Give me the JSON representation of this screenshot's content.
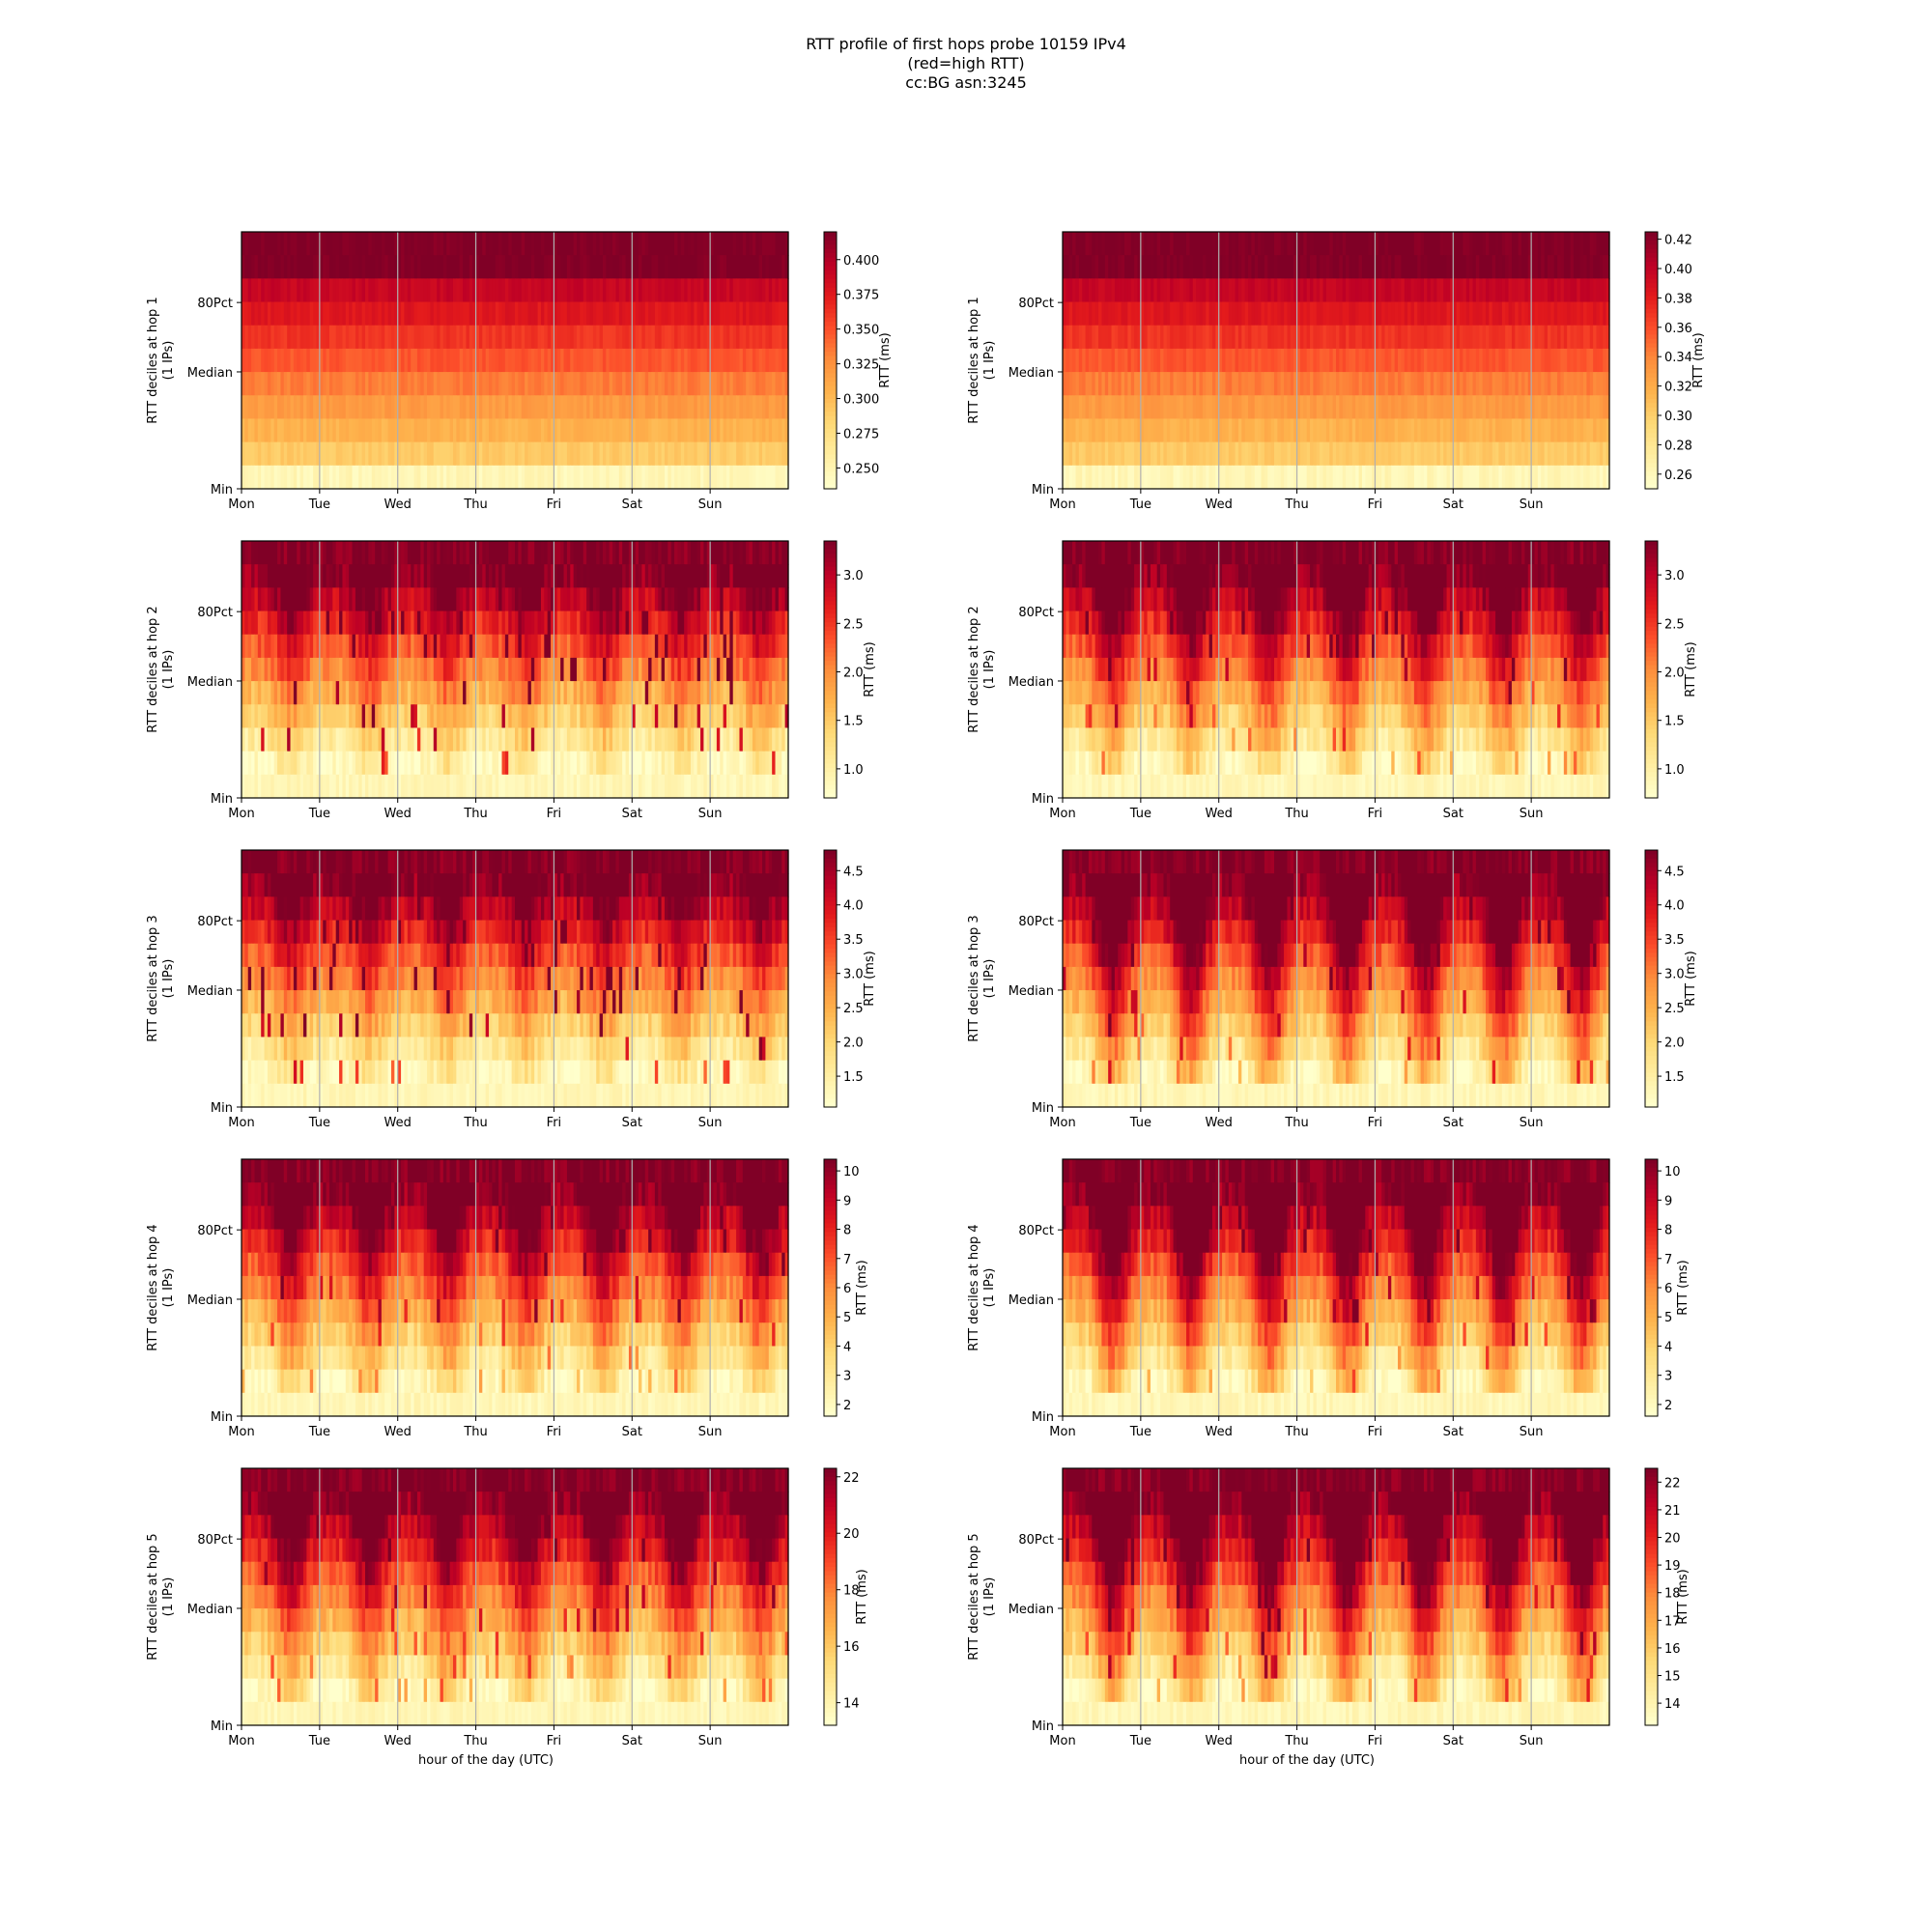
{
  "title_lines": [
    "RTT profile of first hops probe 10159 IPv4",
    "(red=high RTT)",
    "cc:BG asn:3245"
  ],
  "colors": {
    "colormap": [
      "#ffffcc",
      "#ffeda0",
      "#fed976",
      "#feb24c",
      "#fd8d3c",
      "#fc4e2a",
      "#e31a1c",
      "#bd0026",
      "#800026"
    ],
    "gridline": "#b0b0b0",
    "axis": "#000000"
  },
  "chart_data": [
    {
      "type": "heatmap",
      "panel": "hop1-left",
      "ylabel": [
        "RTT deciles at hop 1",
        "(1 IPs)"
      ],
      "xlabel": "",
      "x_ticks": [
        "Mon",
        "Tue",
        "Wed",
        "Thu",
        "Fri",
        "Sat",
        "Sun"
      ],
      "y_ticks": [
        "80Pct",
        "Median",
        "Min"
      ],
      "colorbar_label": "RTT (ms)",
      "colorbar_ticks": [
        "0.250",
        "0.275",
        "0.300",
        "0.325",
        "0.350",
        "0.375",
        "0.400"
      ],
      "colorbar_range": [
        0.235,
        0.42
      ],
      "pattern": "uniform",
      "noise": 0.12,
      "lowest_bin": 0.25
    },
    {
      "type": "heatmap",
      "panel": "hop1-right",
      "ylabel": [
        "RTT deciles at hop 1",
        "(1 IPs)"
      ],
      "xlabel": "",
      "x_ticks": [
        "Mon",
        "Tue",
        "Wed",
        "Thu",
        "Fri",
        "Sat",
        "Sun"
      ],
      "y_ticks": [
        "80Pct",
        "Median",
        "Min"
      ],
      "colorbar_label": "RTT (ms)",
      "colorbar_ticks": [
        "0.26",
        "0.28",
        "0.30",
        "0.32",
        "0.34",
        "0.36",
        "0.38",
        "0.40",
        "0.42"
      ],
      "colorbar_range": [
        0.25,
        0.425
      ],
      "pattern": "uniform",
      "noise": 0.12,
      "lowest_bin": 0.26
    },
    {
      "type": "heatmap",
      "panel": "hop2-left",
      "ylabel": [
        "RTT deciles at hop 2",
        "(1 IPs)"
      ],
      "xlabel": "",
      "x_ticks": [
        "Mon",
        "Tue",
        "Wed",
        "Thu",
        "Fri",
        "Sat",
        "Sun"
      ],
      "y_ticks": [
        "80Pct",
        "Median",
        "Min"
      ],
      "colorbar_label": "RTT (ms)",
      "colorbar_ticks": [
        "1.0",
        "1.5",
        "2.0",
        "2.5",
        "3.0"
      ],
      "colorbar_range": [
        0.7,
        3.35
      ],
      "pattern": "spiky",
      "noise": 0.25,
      "lowest_bin": 0.8
    },
    {
      "type": "heatmap",
      "panel": "hop2-right",
      "ylabel": [
        "RTT deciles at hop 2",
        "(1 IPs)"
      ],
      "xlabel": "",
      "x_ticks": [
        "Mon",
        "Tue",
        "Wed",
        "Thu",
        "Fri",
        "Sat",
        "Sun"
      ],
      "y_ticks": [
        "80Pct",
        "Median",
        "Min"
      ],
      "colorbar_label": "RTT (ms)",
      "colorbar_ticks": [
        "1.0",
        "1.5",
        "2.0",
        "2.5",
        "3.0"
      ],
      "colorbar_range": [
        0.7,
        3.35
      ],
      "pattern": "diurnal-mild",
      "noise": 0.25,
      "lowest_bin": 0.8
    },
    {
      "type": "heatmap",
      "panel": "hop3-left",
      "ylabel": [
        "RTT deciles at hop 3",
        "(1 IPs)"
      ],
      "xlabel": "",
      "x_ticks": [
        "Mon",
        "Tue",
        "Wed",
        "Thu",
        "Fri",
        "Sat",
        "Sun"
      ],
      "y_ticks": [
        "80Pct",
        "Median",
        "Min"
      ],
      "colorbar_label": "RTT (ms)",
      "colorbar_ticks": [
        "1.5",
        "2.0",
        "2.5",
        "3.0",
        "3.5",
        "4.0",
        "4.5"
      ],
      "colorbar_range": [
        1.05,
        4.8
      ],
      "pattern": "spiky",
      "noise": 0.25,
      "lowest_bin": 1.1
    },
    {
      "type": "heatmap",
      "panel": "hop3-right",
      "ylabel": [
        "RTT deciles at hop 3",
        "(1 IPs)"
      ],
      "xlabel": "",
      "x_ticks": [
        "Mon",
        "Tue",
        "Wed",
        "Thu",
        "Fri",
        "Sat",
        "Sun"
      ],
      "y_ticks": [
        "80Pct",
        "Median",
        "Min"
      ],
      "colorbar_label": "RTT (ms)",
      "colorbar_ticks": [
        "1.5",
        "2.0",
        "2.5",
        "3.0",
        "3.5",
        "4.0",
        "4.5"
      ],
      "colorbar_range": [
        1.05,
        4.8
      ],
      "pattern": "diurnal",
      "noise": 0.2,
      "lowest_bin": 1.1
    },
    {
      "type": "heatmap",
      "panel": "hop4-left",
      "ylabel": [
        "RTT deciles at hop 4",
        "(1 IPs)"
      ],
      "xlabel": "",
      "x_ticks": [
        "Mon",
        "Tue",
        "Wed",
        "Thu",
        "Fri",
        "Sat",
        "Sun"
      ],
      "y_ticks": [
        "80Pct",
        "Median",
        "Min"
      ],
      "colorbar_label": "RTT (ms)",
      "colorbar_ticks": [
        "2",
        "3",
        "4",
        "5",
        "6",
        "7",
        "8",
        "9",
        "10"
      ],
      "colorbar_range": [
        1.6,
        10.4
      ],
      "pattern": "diurnal-mild",
      "noise": 0.2,
      "lowest_bin": 1.8
    },
    {
      "type": "heatmap",
      "panel": "hop4-right",
      "ylabel": [
        "RTT deciles at hop 4",
        "(1 IPs)"
      ],
      "xlabel": "",
      "x_ticks": [
        "Mon",
        "Tue",
        "Wed",
        "Thu",
        "Fri",
        "Sat",
        "Sun"
      ],
      "y_ticks": [
        "80Pct",
        "Median",
        "Min"
      ],
      "colorbar_label": "RTT (ms)",
      "colorbar_ticks": [
        "2",
        "3",
        "4",
        "5",
        "6",
        "7",
        "8",
        "9",
        "10"
      ],
      "colorbar_range": [
        1.6,
        10.4
      ],
      "pattern": "diurnal",
      "noise": 0.18,
      "lowest_bin": 1.8
    },
    {
      "type": "heatmap",
      "panel": "hop5-left",
      "ylabel": [
        "RTT deciles at hop 5",
        "(1 IPs)"
      ],
      "xlabel": "hour of the day (UTC)",
      "x_ticks": [
        "Mon",
        "Tue",
        "Wed",
        "Thu",
        "Fri",
        "Sat",
        "Sun"
      ],
      "y_ticks": [
        "80Pct",
        "Median",
        "Min"
      ],
      "colorbar_label": "RTT (ms)",
      "colorbar_ticks": [
        "14",
        "16",
        "18",
        "20",
        "22"
      ],
      "colorbar_range": [
        13.2,
        22.3
      ],
      "pattern": "diurnal-mild",
      "noise": 0.2,
      "lowest_bin": 13.6
    },
    {
      "type": "heatmap",
      "panel": "hop5-right",
      "ylabel": [
        "RTT deciles at hop 5",
        "(1 IPs)"
      ],
      "xlabel": "hour of the day (UTC)",
      "x_ticks": [
        "Mon",
        "Tue",
        "Wed",
        "Thu",
        "Fri",
        "Sat",
        "Sun"
      ],
      "y_ticks": [
        "80Pct",
        "Median",
        "Min"
      ],
      "colorbar_label": "RTT (ms)",
      "colorbar_ticks": [
        "14",
        "15",
        "16",
        "17",
        "18",
        "19",
        "20",
        "21",
        "22"
      ],
      "colorbar_range": [
        13.2,
        22.5
      ],
      "pattern": "diurnal",
      "noise": 0.18,
      "lowest_bin": 13.6
    }
  ]
}
